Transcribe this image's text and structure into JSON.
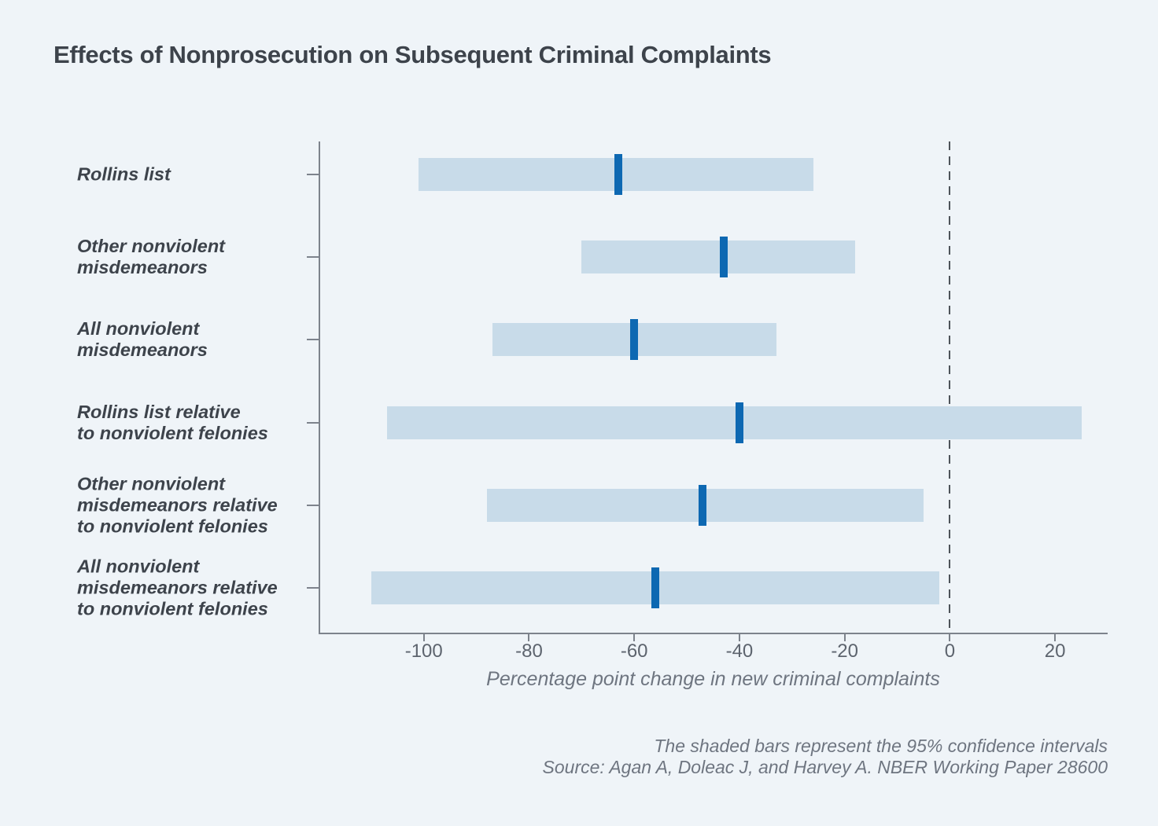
{
  "title": "Effects of Nonprosecution on Subsequent Criminal Complaints",
  "notes": {
    "line1": "The shaded bars represent the 95% confidence intervals",
    "line2": "Source: Agan A, Doleac J, and Harvey A. NBER Working Paper 28600"
  },
  "colors": {
    "background": "#eff4f8",
    "ci_bar": "#c8dbe9",
    "estimate_marker": "#0d68b2",
    "axis": "#7d838c",
    "zero_line": "#4d5359",
    "title_text": "#3d434b",
    "label_text": "#3d434b",
    "note_text": "#6e7580"
  },
  "chart_data": {
    "type": "bar",
    "subtype": "horizontal-confidence-interval",
    "title": "Effects of Nonprosecution on Subsequent Criminal Complaints",
    "xlabel": "Percentage point change in new criminal complaints",
    "ylabel": "",
    "xlim": [
      -120,
      30
    ],
    "xticks": [
      -100,
      -80,
      -60,
      -40,
      -20,
      0,
      20
    ],
    "zero_reference_line": 0,
    "grid": false,
    "legend_position": "none",
    "categories": [
      "Rollins list",
      "Other nonviolent misdemeanors",
      "All nonviolent misdemeanors",
      "Rollins list relative to nonviolent felonies",
      "Other nonviolent misdemeanors relative to nonviolent felonies",
      "All nonviolent misdemeanors relative to nonviolent felonies"
    ],
    "rows": [
      {
        "label_lines": [
          "Rollins list"
        ],
        "ci_low": -101,
        "ci_high": -26,
        "estimate": -63
      },
      {
        "label_lines": [
          "Other nonviolent",
          "misdemeanors"
        ],
        "ci_low": -70,
        "ci_high": -18,
        "estimate": -43
      },
      {
        "label_lines": [
          "All nonviolent",
          "misdemeanors"
        ],
        "ci_low": -87,
        "ci_high": -33,
        "estimate": -60
      },
      {
        "label_lines": [
          "Rollins list relative",
          "to nonviolent felonies"
        ],
        "ci_low": -107,
        "ci_high": 25,
        "estimate": -40
      },
      {
        "label_lines": [
          "Other nonviolent",
          "misdemeanors relative",
          "to nonviolent felonies"
        ],
        "ci_low": -88,
        "ci_high": -5,
        "estimate": -47
      },
      {
        "label_lines": [
          "All nonviolent",
          "misdemeanors relative",
          "to nonviolent felonies"
        ],
        "ci_low": -110,
        "ci_high": -2,
        "estimate": -56
      }
    ]
  }
}
